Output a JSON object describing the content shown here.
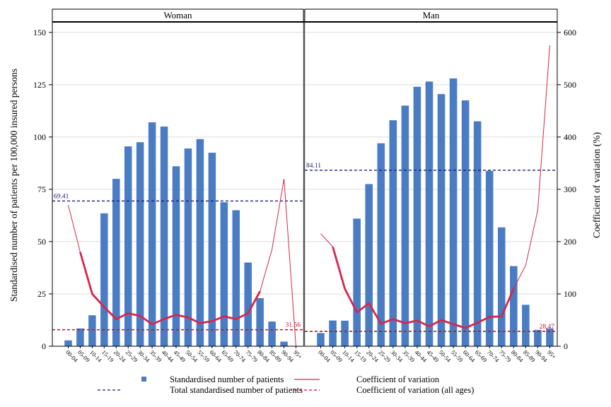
{
  "chart_data": {
    "type": "bar",
    "ylabel_left": "Standardised number of patients per 100,000 insured persons",
    "ylabel_right": "Coefficient of variation (%)",
    "ylim_left": [
      0,
      155
    ],
    "ylim_right": [
      0,
      620
    ],
    "yticks_left": [
      "0",
      "25",
      "50",
      "75",
      "100",
      "125",
      "150"
    ],
    "yticks_right": [
      "0",
      "100",
      "200",
      "300",
      "400",
      "500",
      "600"
    ],
    "categories": [
      "00-04",
      "05-09",
      "10-14",
      "15-19",
      "20-24",
      "25-29",
      "30-34",
      "35-39",
      "40-44",
      "45-49",
      "50-54",
      "55-59",
      "60-64",
      "65-69",
      "70-74",
      "75-79",
      "80-84",
      "85-89",
      "90-94",
      "95+"
    ],
    "panels": [
      {
        "title": "Woman",
        "bars": [
          2.8,
          8.5,
          14.8,
          63.5,
          80,
          95.5,
          97.5,
          107,
          105,
          86,
          94.5,
          99,
          92.5,
          68.8,
          65,
          40,
          23,
          11.8,
          2.2,
          0
        ],
        "cv": [
          270,
          180,
          100,
          75,
          52,
          63,
          58,
          42,
          52,
          60,
          55,
          44,
          48,
          57,
          52,
          63,
          105,
          185,
          320,
          0
        ],
        "cv_bold": [
          null,
          180,
          100,
          75,
          52,
          63,
          58,
          42,
          52,
          60,
          55,
          44,
          48,
          57,
          52,
          63,
          105,
          null,
          null,
          null
        ],
        "total_patients": 69.41,
        "total_patients_label": "69.41",
        "cv_all_ages": 31.56,
        "cv_all_ages_label": "31.56"
      },
      {
        "title": "Man",
        "bars": [
          6.3,
          12.3,
          12.2,
          61,
          77.5,
          97,
          108,
          115,
          124,
          126.5,
          120.5,
          128,
          117.5,
          107.5,
          83.8,
          56.8,
          38.3,
          19.8,
          7.8,
          8.5
        ],
        "cv": [
          215,
          190,
          110,
          65,
          82,
          43,
          52,
          44,
          49,
          38,
          50,
          42,
          35,
          45,
          56,
          57,
          110,
          155,
          260,
          575
        ],
        "cv_bold": [
          null,
          190,
          110,
          65,
          82,
          43,
          52,
          44,
          49,
          38,
          50,
          42,
          35,
          45,
          56,
          57,
          110,
          null,
          null,
          null
        ],
        "total_patients": 84.11,
        "total_patients_label": "84.11",
        "cv_all_ages": 28.47,
        "cv_all_ages_label": "28.47"
      }
    ],
    "legend": [
      {
        "key": "bars",
        "label": "Standardised number of patients"
      },
      {
        "key": "cv",
        "label": "Coefficient of variation"
      },
      {
        "key": "total",
        "label": "Total standardised number of patients"
      },
      {
        "key": "cvall",
        "label": "Coefficient of variation (all ages)"
      }
    ],
    "legend_position": "bottom",
    "grid": "horizontal"
  },
  "colors": {
    "bar": "#4a7cc4",
    "cv_line": "#d7264b",
    "total_line": "#1c1c7a",
    "cv_all_line": "#c3102c",
    "grid": "#dddddd"
  }
}
